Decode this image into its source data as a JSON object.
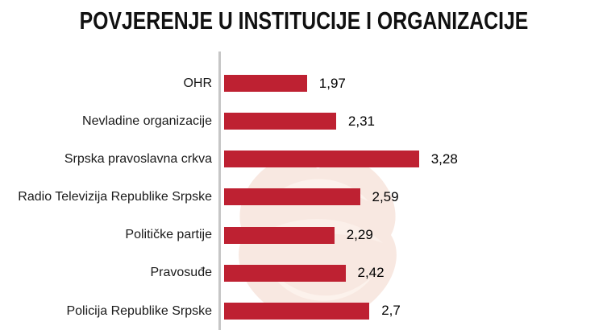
{
  "title": "POVJERENJE U INSTITUCIJE I ORGANIZACIJE",
  "chart_data": {
    "type": "bar",
    "orientation": "horizontal",
    "title": "POVJERENJE U INSTITUCIJE I ORGANIZACIJE",
    "xlabel": "",
    "ylabel": "",
    "categories": [
      "OHR",
      "Nevladine organizacije",
      "Srpska pravoslavna crkva",
      "Radio Televizija Republike Srpske",
      "Političke partije",
      "Pravosuđe",
      "Policija Republike Srpske"
    ],
    "values": [
      1.97,
      2.31,
      3.28,
      2.59,
      2.29,
      2.42,
      2.7
    ],
    "value_labels": [
      "1,97",
      "2,31",
      "3,28",
      "2,59",
      "2,29",
      "2,42",
      "2,7"
    ],
    "xlim": [
      1.0,
      3.5
    ],
    "grid": false,
    "legend": false,
    "bar_color": "#be2132",
    "axis_line_color": "#c6c6c6",
    "category_label_color": "#1a1a1a",
    "value_label_color": "#000000",
    "background_color": "#ffffff",
    "watermark_colors": [
      "#f8e8e1",
      "#fcf2ec",
      "#fbefe9"
    ]
  }
}
